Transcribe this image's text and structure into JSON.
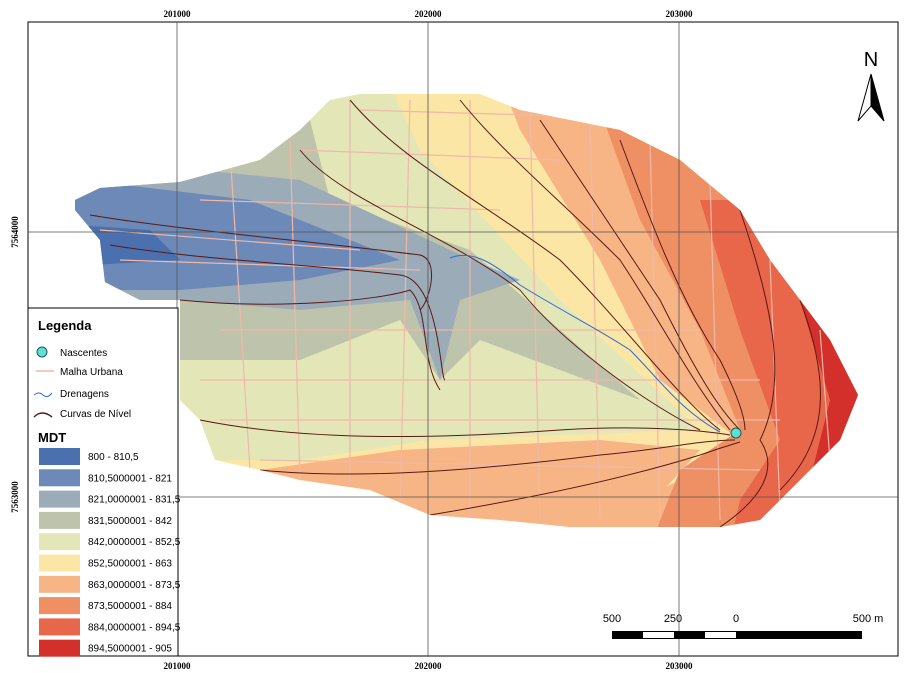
{
  "north": "N",
  "grid": {
    "x_labels": [
      "201000",
      "202000",
      "203000"
    ],
    "y_labels": [
      "7564000",
      "7563000"
    ]
  },
  "legend": {
    "title": "Legenda",
    "items": [
      "Nascentes",
      "Malha Urbana",
      "Drenagens",
      "Curvas de Nível"
    ],
    "mdt_title": "MDT",
    "classes": [
      {
        "label": "800 - 810,5",
        "color": "#4a70b0"
      },
      {
        "label": "810,5000001 - 821",
        "color": "#6c89b7"
      },
      {
        "label": "821,0000001 - 831,5",
        "color": "#9babb8"
      },
      {
        "label": "831,5000001 - 842",
        "color": "#bec4ab"
      },
      {
        "label": "842,0000001 - 852,5",
        "color": "#e3e7b8"
      },
      {
        "label": "852,5000001 - 863",
        "color": "#fbe6a6"
      },
      {
        "label": "863,0000001 - 873,5",
        "color": "#f7b585"
      },
      {
        "label": "873,5000001 - 884",
        "color": "#ef9064"
      },
      {
        "label": "884,0000001 - 894,5",
        "color": "#e8664a"
      },
      {
        "label": "894,5000001 - 905",
        "color": "#d3302c"
      }
    ]
  },
  "scale": {
    "labels": [
      "500",
      "250",
      "0",
      "500 m"
    ]
  }
}
